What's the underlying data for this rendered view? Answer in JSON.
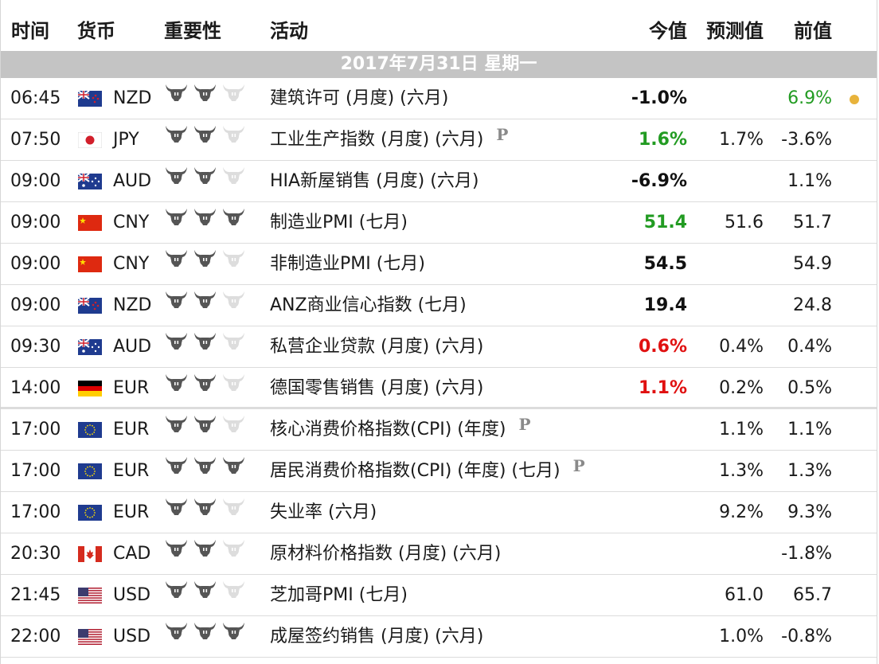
{
  "header": {
    "time": "时间",
    "currency": "货币",
    "importance": "重要性",
    "event": "活动",
    "actual": "今值",
    "forecast": "预测值",
    "previous": "前值"
  },
  "date_label": "2017年7月31日  星期一",
  "colors": {
    "positive": "#229b22",
    "negative": "#e01010",
    "neutral": "#111111",
    "bull_on": "#555555",
    "bull_off": "#dddddd",
    "date_bar": "#c4c4c4",
    "dot": "#e8b33b"
  },
  "rows": [
    {
      "time": "06:45",
      "flag": "nz",
      "currency": "NZD",
      "importance": 2,
      "event": "建筑许可 (月度) (六月)",
      "prelim": "",
      "actual": "-1.0%",
      "actual_color": "black",
      "forecast": "",
      "previous": "6.9%",
      "previous_color": "green",
      "dot": true
    },
    {
      "time": "07:50",
      "flag": "jp",
      "currency": "JPY",
      "importance": 2,
      "event": "工业生产指数 (月度) (六月)",
      "prelim": "P",
      "actual": "1.6%",
      "actual_color": "green",
      "forecast": "1.7%",
      "previous": "-3.6%",
      "previous_color": "",
      "dot": false
    },
    {
      "time": "09:00",
      "flag": "au",
      "currency": "AUD",
      "importance": 2,
      "event": "HIA新屋销售 (月度) (六月)",
      "prelim": "",
      "actual": "-6.9%",
      "actual_color": "black",
      "forecast": "",
      "previous": "1.1%",
      "previous_color": "",
      "dot": false
    },
    {
      "time": "09:00",
      "flag": "cn",
      "currency": "CNY",
      "importance": 3,
      "event": "制造业PMI (七月)",
      "prelim": "",
      "actual": "51.4",
      "actual_color": "green",
      "forecast": "51.6",
      "previous": "51.7",
      "previous_color": "",
      "dot": false
    },
    {
      "time": "09:00",
      "flag": "cn",
      "currency": "CNY",
      "importance": 2,
      "event": "非制造业PMI (七月)",
      "prelim": "",
      "actual": "54.5",
      "actual_color": "black",
      "forecast": "",
      "previous": "54.9",
      "previous_color": "",
      "dot": false
    },
    {
      "time": "09:00",
      "flag": "nz",
      "currency": "NZD",
      "importance": 2,
      "event": "ANZ商业信心指数 (七月)",
      "prelim": "",
      "actual": "19.4",
      "actual_color": "black",
      "forecast": "",
      "previous": "24.8",
      "previous_color": "",
      "dot": false
    },
    {
      "time": "09:30",
      "flag": "au",
      "currency": "AUD",
      "importance": 2,
      "event": "私营企业贷款 (月度) (六月)",
      "prelim": "",
      "actual": "0.6%",
      "actual_color": "red",
      "forecast": "0.4%",
      "previous": "0.4%",
      "previous_color": "",
      "dot": false
    },
    {
      "time": "14:00",
      "flag": "de",
      "currency": "EUR",
      "importance": 2,
      "event": "德国零售销售 (月度) (六月)",
      "prelim": "",
      "actual": "1.1%",
      "actual_color": "red",
      "forecast": "0.2%",
      "previous": "0.5%",
      "previous_color": "",
      "dot": false,
      "thick": true
    },
    {
      "time": "17:00",
      "flag": "eu",
      "currency": "EUR",
      "importance": 2,
      "event": "核心消费价格指数(CPI) (年度)",
      "prelim": "P",
      "actual": "",
      "actual_color": "",
      "forecast": "1.1%",
      "previous": "1.1%",
      "previous_color": "",
      "dot": false
    },
    {
      "time": "17:00",
      "flag": "eu",
      "currency": "EUR",
      "importance": 3,
      "event": "居民消费价格指数(CPI) (年度) (七月)",
      "prelim": "P",
      "actual": "",
      "actual_color": "",
      "forecast": "1.3%",
      "previous": "1.3%",
      "previous_color": "",
      "dot": false
    },
    {
      "time": "17:00",
      "flag": "eu",
      "currency": "EUR",
      "importance": 2,
      "event": "失业率 (六月)",
      "prelim": "",
      "actual": "",
      "actual_color": "",
      "forecast": "9.2%",
      "previous": "9.3%",
      "previous_color": "",
      "dot": false
    },
    {
      "time": "20:30",
      "flag": "ca",
      "currency": "CAD",
      "importance": 2,
      "event": "原材料价格指数 (月度) (六月)",
      "prelim": "",
      "actual": "",
      "actual_color": "",
      "forecast": "",
      "previous": "-1.8%",
      "previous_color": "",
      "dot": false
    },
    {
      "time": "21:45",
      "flag": "us",
      "currency": "USD",
      "importance": 2,
      "event": "芝加哥PMI (七月)",
      "prelim": "",
      "actual": "",
      "actual_color": "",
      "forecast": "61.0",
      "previous": "65.7",
      "previous_color": "",
      "dot": false
    },
    {
      "time": "22:00",
      "flag": "us",
      "currency": "USD",
      "importance": 3,
      "event": "成屋签约销售 (月度) (六月)",
      "prelim": "",
      "actual": "",
      "actual_color": "",
      "forecast": "1.0%",
      "previous": "-0.8%",
      "previous_color": "",
      "dot": false
    }
  ]
}
